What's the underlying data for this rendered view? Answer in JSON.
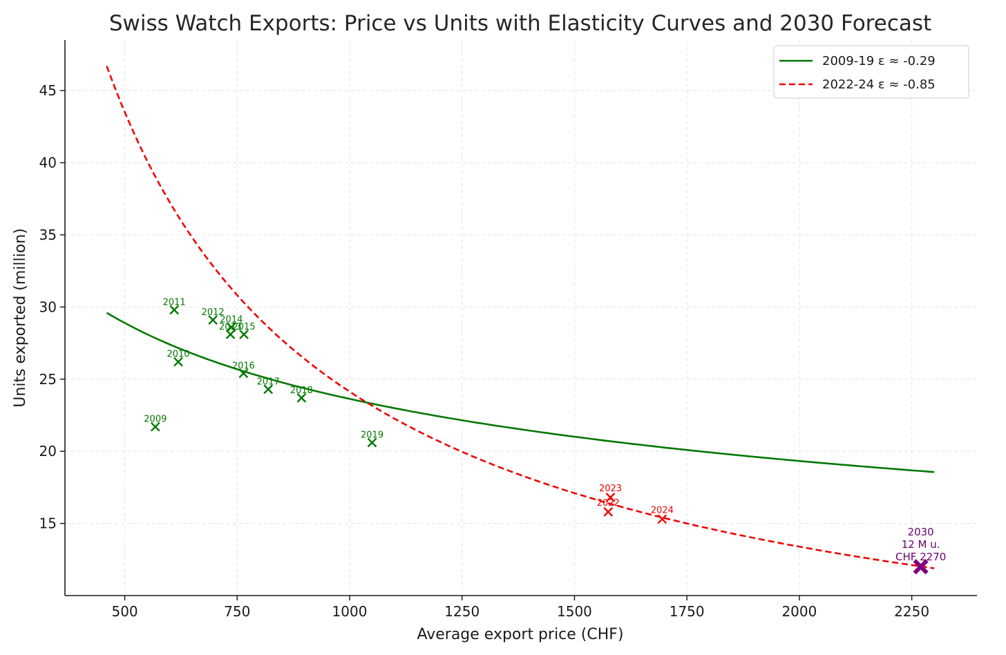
{
  "chart_data": {
    "type": "scatter",
    "title": "Swiss Watch Exports: Price vs Units with Elasticity Curves and 2030 Forecast",
    "xlabel": "Average export price (CHF)",
    "ylabel": "Units exported (million)",
    "xlim": [
      367,
      2395
    ],
    "ylim": [
      10.0,
      48.5
    ],
    "xticks": [
      500,
      750,
      1000,
      1250,
      1500,
      1750,
      2000,
      2250
    ],
    "yticks": [
      15,
      20,
      25,
      30,
      35,
      40,
      45
    ],
    "grid": true,
    "legend_position": "top-right",
    "colors": {
      "early": "#007700",
      "late": "#ee0000",
      "forecast": "#800080"
    },
    "curves": [
      {
        "name": "2009-19 ε ≈ -0.29",
        "style": "solid",
        "color": "#007700",
        "elasticity": -0.29,
        "x_range": [
          460,
          2300
        ],
        "ref_x": 460,
        "ref_y": 29.6
      },
      {
        "name": "2022-24 ε ≈ -0.85",
        "style": "dashed",
        "color": "#ee0000",
        "elasticity": -0.85,
        "x_range": [
          460,
          2300
        ],
        "ref_x": 460,
        "ref_y": 46.7
      }
    ],
    "points_2009_19": [
      {
        "label": "2009",
        "x": 568,
        "y": 21.7
      },
      {
        "label": "2010",
        "x": 619,
        "y": 26.2
      },
      {
        "label": "2011",
        "x": 610,
        "y": 29.8
      },
      {
        "label": "2012",
        "x": 696,
        "y": 29.1
      },
      {
        "label": "2013",
        "x": 735,
        "y": 28.1
      },
      {
        "label": "2014",
        "x": 737,
        "y": 28.6
      },
      {
        "label": "2015",
        "x": 765,
        "y": 28.1
      },
      {
        "label": "2016",
        "x": 764,
        "y": 25.4
      },
      {
        "label": "2017",
        "x": 819,
        "y": 24.3
      },
      {
        "label": "2018",
        "x": 893,
        "y": 23.7
      },
      {
        "label": "2019",
        "x": 1050,
        "y": 20.6
      }
    ],
    "points_2022_24": [
      {
        "label": "2022",
        "x": 1575,
        "y": 15.8
      },
      {
        "label": "2023",
        "x": 1580,
        "y": 16.8
      },
      {
        "label": "2024",
        "x": 1695,
        "y": 15.3
      }
    ],
    "forecast": {
      "line1": "2030",
      "line2": "12 M u.",
      "line3": "CHF 2270",
      "x": 2270,
      "y": 12.0
    }
  }
}
